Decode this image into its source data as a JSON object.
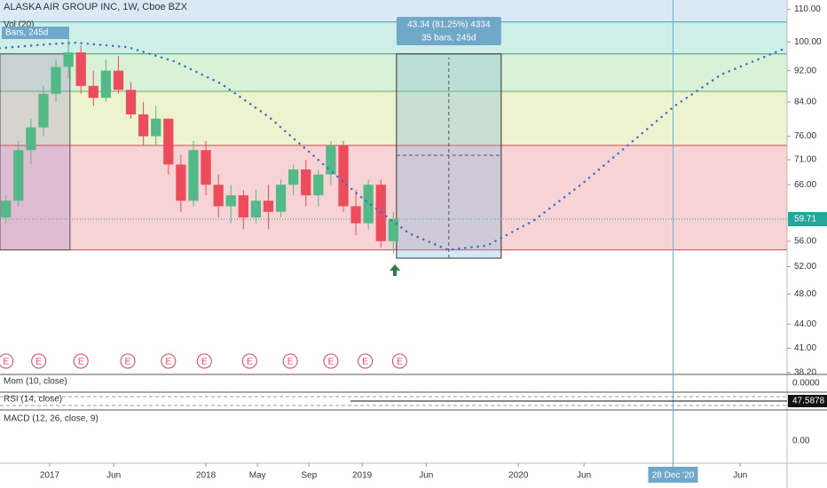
{
  "chart_data": {
    "type": "candlestick",
    "title": "ALASKA AIR GROUP INC, 1W, Cboe BZX",
    "subtitle": "Vol (20)",
    "log_scale": true,
    "xlim": [
      2016.682,
      2021.72
    ],
    "ylim": [
      38,
      113
    ],
    "xticks": [
      {
        "value": 2017.0,
        "label": "2017"
      },
      {
        "value": 2017.41,
        "label": "Jun"
      },
      {
        "value": 2018.0,
        "label": "2018"
      },
      {
        "value": 2018.33,
        "label": "May"
      },
      {
        "value": 2018.66,
        "label": "Sep"
      },
      {
        "value": 2019.0,
        "label": "2019"
      },
      {
        "value": 2019.41,
        "label": "Jun"
      },
      {
        "value": 2020.0,
        "label": "2020"
      },
      {
        "value": 2020.42,
        "label": "Jun"
      },
      {
        "value": 2020.99,
        "label": "28 Dec '20"
      },
      {
        "value": 2021.42,
        "label": "Jun"
      }
    ],
    "yticks": [
      {
        "value": 110,
        "label": "110.00"
      },
      {
        "value": 100,
        "label": "100.00"
      },
      {
        "value": 92,
        "label": "92.00"
      },
      {
        "value": 84,
        "label": "84.00"
      },
      {
        "value": 76,
        "label": "76.00"
      },
      {
        "value": 71,
        "label": "71.00"
      },
      {
        "value": 66,
        "label": "66.00"
      },
      {
        "value": 56,
        "label": "56.00"
      },
      {
        "value": 52,
        "label": "52.00"
      },
      {
        "value": 48,
        "label": "48.00"
      },
      {
        "value": 44,
        "label": "44.00"
      },
      {
        "value": 41,
        "label": "41.00"
      },
      {
        "value": 38.2,
        "label": "38.20"
      }
    ],
    "last_price": {
      "value": 59.71,
      "label": "59.71"
    },
    "up_color": "#53b987",
    "down_color": "#eb4d5c",
    "x": [
      2016.72,
      2016.8,
      2016.88,
      2016.96,
      2017.04,
      2017.12,
      2017.2,
      2017.28,
      2017.36,
      2017.44,
      2017.52,
      2017.6,
      2017.68,
      2017.76,
      2017.84,
      2017.92,
      2018.0,
      2018.08,
      2018.16,
      2018.24,
      2018.32,
      2018.4,
      2018.48,
      2018.56,
      2018.64,
      2018.72,
      2018.8,
      2018.88,
      2018.96,
      2019.04,
      2019.12,
      2019.2
    ],
    "open": [
      60,
      63,
      73,
      78,
      86,
      93,
      97,
      88,
      85,
      92,
      87,
      81,
      76,
      80,
      70,
      63,
      73,
      66,
      62,
      64,
      60,
      63,
      61,
      66,
      69,
      64,
      68,
      74,
      62,
      59,
      66,
      56
    ],
    "high": [
      64,
      75,
      80,
      88,
      95,
      101,
      99,
      92,
      95,
      96,
      89,
      84,
      83,
      80,
      72,
      75,
      75,
      68,
      66,
      65,
      65,
      66,
      67,
      70,
      71,
      69,
      75,
      75,
      65,
      67,
      67,
      61
    ],
    "low": [
      59,
      62,
      70,
      76,
      84,
      90,
      86,
      83,
      84,
      86,
      80,
      74,
      74,
      68,
      61,
      62,
      64,
      60,
      59,
      58,
      59,
      58,
      60,
      64,
      62,
      62,
      66,
      61,
      57,
      58,
      55,
      54
    ],
    "close": [
      63,
      73,
      78,
      86,
      93,
      97,
      88,
      85,
      92,
      87,
      81,
      76,
      80,
      70,
      63,
      73,
      66,
      62,
      64,
      60,
      63,
      61,
      66,
      69,
      64,
      68,
      74,
      62,
      59,
      66,
      56,
      59.71
    ],
    "fib_levels": [
      54.6,
      74,
      86.6,
      96.6,
      106
    ],
    "fib_colors": [
      "#f7d3d6",
      "#edf3cf",
      "#d9f1d6",
      "#cfeee8",
      "#dbe9f7"
    ],
    "cycle": {
      "color": "#3a6fc4",
      "x": [
        2016.68,
        2017.0,
        2017.17,
        2017.5,
        2017.8,
        2018.1,
        2018.4,
        2018.7,
        2019.0,
        2019.3,
        2019.55,
        2019.8,
        2020.1,
        2020.4,
        2020.7,
        2021.0,
        2021.3,
        2021.72
      ],
      "values": [
        98.2,
        99.4,
        99.8,
        98.5,
        94.5,
        88.5,
        80.5,
        71.5,
        63.5,
        57.3,
        54.6,
        55.3,
        59.5,
        66,
        74,
        83,
        91,
        98.4
      ]
    },
    "measure": {
      "x": [
        2019.22,
        2019.89
      ],
      "values": [
        53.3,
        96.6
      ],
      "label_1": "43.34 (81.25%) 4334",
      "label_2": "35 bars, 245d"
    },
    "left_box_label": "Bars, 245d",
    "earnings": {
      "label": "E",
      "x": [
        2016.72,
        2016.93,
        2017.2,
        2017.5,
        2017.76,
        2017.99,
        2018.28,
        2018.54,
        2018.8,
        2019.02,
        2019.24
      ]
    },
    "indicators": [
      {
        "name": "Mom (10, close)",
        "tick": {
          "value": 0,
          "label": "0.0000"
        }
      },
      {
        "name": "RSI (14, close)",
        "tick": {
          "value": 47.5878,
          "label": "47.5878"
        }
      },
      {
        "name": "MACD (12, 26, close, 9)",
        "tick": {
          "value": 0,
          "label": "0.00"
        }
      }
    ]
  }
}
